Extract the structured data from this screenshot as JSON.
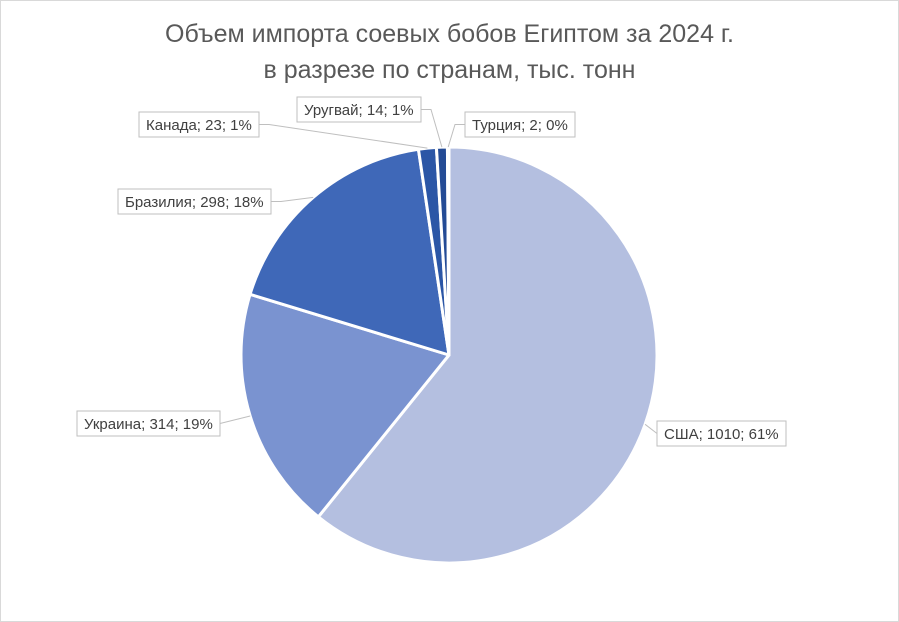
{
  "chart_data": {
    "type": "pie",
    "title_line1": "Объем импорта соевых бобов Египтом за 2024 г.",
    "title_line2": "в разрезе по странам, тыс. тонн",
    "legend": "none",
    "slices": [
      {
        "name": "США",
        "value": 1010,
        "percent": "61%",
        "label": "США; 1010; 61%",
        "color": "#b4bfe0"
      },
      {
        "name": "Украина",
        "value": 314,
        "percent": "19%",
        "label": "Украина; 314; 19%",
        "color": "#7a93d0"
      },
      {
        "name": "Бразилия",
        "value": 298,
        "percent": "18%",
        "label": "Бразилия; 298; 18%",
        "color": "#3f68b8"
      },
      {
        "name": "Канада",
        "value": 23,
        "percent": "1%",
        "label": "Канада; 23; 1%",
        "color": "#2b56a6"
      },
      {
        "name": "Уругвай",
        "value": 14,
        "percent": "1%",
        "label": "Уругвай; 14; 1%",
        "color": "#244b95"
      },
      {
        "name": "Турция",
        "value": 2,
        "percent": "0%",
        "label": "Турция; 2; 0%",
        "color": "#1f3f82"
      }
    ]
  }
}
